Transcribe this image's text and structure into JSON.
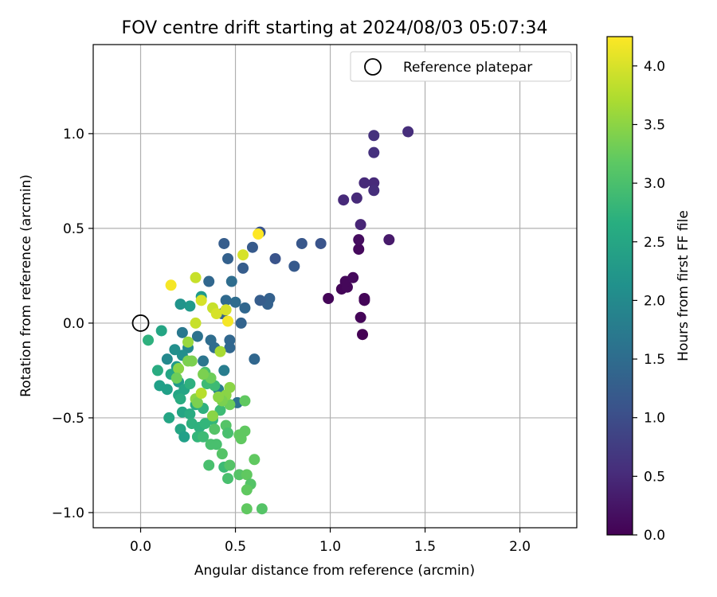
{
  "chart_data": {
    "type": "scatter",
    "title": "FOV centre drift starting at 2024/08/03 05:07:34",
    "xlabel": "Angular distance from reference (arcmin)",
    "ylabel": "Rotation from reference (arcmin)",
    "xlim": [
      -0.25,
      2.3
    ],
    "ylim": [
      -1.08,
      1.47
    ],
    "xticks": [
      "0.0",
      "0.5",
      "1.0",
      "1.5",
      "2.0"
    ],
    "yticks": [
      "−1.0",
      "−0.5",
      "0.0",
      "0.5",
      "1.0"
    ],
    "grid": true,
    "legend": {
      "label": "Reference platepar",
      "placement": "top-right"
    },
    "reference_point": {
      "x": 0.0,
      "y": 0.0
    },
    "colorbar": {
      "label": "Hours from first FF file",
      "range": [
        0,
        4.25
      ],
      "ticks": [
        "0.0",
        "0.5",
        "1.0",
        "1.5",
        "2.0",
        "2.5",
        "3.0",
        "3.5",
        "4.0"
      ],
      "colormap": "viridis"
    },
    "points": [
      {
        "x": 1.17,
        "y": -0.06,
        "c": 0.0
      },
      {
        "x": 1.16,
        "y": 0.03,
        "c": 0.05
      },
      {
        "x": 1.18,
        "y": 0.12,
        "c": 0.05
      },
      {
        "x": 1.18,
        "y": 0.13,
        "c": 0.05
      },
      {
        "x": 1.06,
        "y": 0.18,
        "c": 0.05
      },
      {
        "x": 1.09,
        "y": 0.19,
        "c": 0.08
      },
      {
        "x": 1.08,
        "y": 0.22,
        "c": 0.08
      },
      {
        "x": 1.12,
        "y": 0.24,
        "c": 0.1
      },
      {
        "x": 0.99,
        "y": 0.13,
        "c": 0.05
      },
      {
        "x": 1.15,
        "y": 0.39,
        "c": 0.1
      },
      {
        "x": 1.15,
        "y": 0.44,
        "c": 0.15
      },
      {
        "x": 1.31,
        "y": 0.44,
        "c": 0.3
      },
      {
        "x": 1.16,
        "y": 0.52,
        "c": 0.45
      },
      {
        "x": 1.07,
        "y": 0.65,
        "c": 0.5
      },
      {
        "x": 1.14,
        "y": 0.66,
        "c": 0.5
      },
      {
        "x": 1.18,
        "y": 0.74,
        "c": 0.5
      },
      {
        "x": 1.23,
        "y": 0.74,
        "c": 0.5
      },
      {
        "x": 1.23,
        "y": 0.7,
        "c": 0.55
      },
      {
        "x": 1.23,
        "y": 0.9,
        "c": 0.6
      },
      {
        "x": 1.23,
        "y": 0.99,
        "c": 0.6
      },
      {
        "x": 1.41,
        "y": 1.01,
        "c": 0.55
      },
      {
        "x": 0.95,
        "y": 0.42,
        "c": 1.1
      },
      {
        "x": 0.85,
        "y": 0.42,
        "c": 1.15
      },
      {
        "x": 0.81,
        "y": 0.3,
        "c": 1.2
      },
      {
        "x": 0.71,
        "y": 0.34,
        "c": 1.1
      },
      {
        "x": 0.63,
        "y": 0.48,
        "c": 1.1
      },
      {
        "x": 0.59,
        "y": 0.4,
        "c": 1.2
      },
      {
        "x": 0.54,
        "y": 0.29,
        "c": 1.25
      },
      {
        "x": 0.44,
        "y": 0.42,
        "c": 1.25
      },
      {
        "x": 0.46,
        "y": 0.34,
        "c": 1.3
      },
      {
        "x": 0.68,
        "y": 0.13,
        "c": 1.3
      },
      {
        "x": 0.67,
        "y": 0.1,
        "c": 1.3
      },
      {
        "x": 0.63,
        "y": 0.12,
        "c": 1.25
      },
      {
        "x": 0.55,
        "y": 0.08,
        "c": 1.4
      },
      {
        "x": 0.53,
        "y": 0.0,
        "c": 1.35
      },
      {
        "x": 0.5,
        "y": 0.11,
        "c": 1.5
      },
      {
        "x": 0.48,
        "y": 0.22,
        "c": 1.5
      },
      {
        "x": 0.45,
        "y": 0.12,
        "c": 1.45
      },
      {
        "x": 0.43,
        "y": 0.05,
        "c": 1.3
      },
      {
        "x": 0.36,
        "y": 0.22,
        "c": 1.4
      },
      {
        "x": 0.6,
        "y": -0.19,
        "c": 1.4
      },
      {
        "x": 0.47,
        "y": -0.09,
        "c": 1.4
      },
      {
        "x": 0.47,
        "y": -0.13,
        "c": 1.4
      },
      {
        "x": 0.39,
        "y": -0.13,
        "c": 1.5
      },
      {
        "x": 0.37,
        "y": -0.09,
        "c": 1.5
      },
      {
        "x": 0.3,
        "y": -0.07,
        "c": 1.6
      },
      {
        "x": 0.33,
        "y": -0.2,
        "c": 1.65
      },
      {
        "x": 0.22,
        "y": -0.05,
        "c": 1.7
      },
      {
        "x": 0.51,
        "y": -0.42,
        "c": 1.6
      },
      {
        "x": 0.44,
        "y": -0.25,
        "c": 1.8
      },
      {
        "x": 0.41,
        "y": -0.35,
        "c": 1.8
      },
      {
        "x": 0.32,
        "y": 0.14,
        "c": 2.3
      },
      {
        "x": 0.26,
        "y": 0.09,
        "c": 2.3
      },
      {
        "x": 0.21,
        "y": 0.1,
        "c": 2.2
      },
      {
        "x": 0.25,
        "y": -0.13,
        "c": 2.0
      },
      {
        "x": 0.22,
        "y": -0.17,
        "c": 2.1
      },
      {
        "x": 0.18,
        "y": -0.14,
        "c": 2.1
      },
      {
        "x": 0.14,
        "y": -0.19,
        "c": 2.0
      },
      {
        "x": 0.11,
        "y": -0.04,
        "c": 2.5
      },
      {
        "x": 0.04,
        "y": -0.09,
        "c": 2.7
      },
      {
        "x": 0.09,
        "y": -0.25,
        "c": 2.6
      },
      {
        "x": 0.19,
        "y": -0.23,
        "c": 2.3
      },
      {
        "x": 0.2,
        "y": -0.31,
        "c": 2.3
      },
      {
        "x": 0.16,
        "y": -0.27,
        "c": 2.5
      },
      {
        "x": 0.1,
        "y": -0.33,
        "c": 2.4
      },
      {
        "x": 0.14,
        "y": -0.35,
        "c": 2.4
      },
      {
        "x": 0.2,
        "y": -0.38,
        "c": 2.5
      },
      {
        "x": 0.23,
        "y": -0.35,
        "c": 2.5
      },
      {
        "x": 0.26,
        "y": -0.32,
        "c": 2.7
      },
      {
        "x": 0.21,
        "y": -0.4,
        "c": 2.6
      },
      {
        "x": 0.15,
        "y": -0.5,
        "c": 2.5
      },
      {
        "x": 0.22,
        "y": -0.47,
        "c": 2.5
      },
      {
        "x": 0.26,
        "y": -0.48,
        "c": 2.6
      },
      {
        "x": 0.27,
        "y": -0.53,
        "c": 2.7
      },
      {
        "x": 0.21,
        "y": -0.56,
        "c": 2.5
      },
      {
        "x": 0.23,
        "y": -0.6,
        "c": 2.4
      },
      {
        "x": 0.29,
        "y": -0.43,
        "c": 2.6
      },
      {
        "x": 0.33,
        "y": -0.45,
        "c": 2.7
      },
      {
        "x": 0.31,
        "y": -0.55,
        "c": 2.7
      },
      {
        "x": 0.34,
        "y": -0.53,
        "c": 2.8
      },
      {
        "x": 0.3,
        "y": -0.6,
        "c": 2.8
      },
      {
        "x": 0.33,
        "y": -0.6,
        "c": 2.9
      },
      {
        "x": 0.37,
        "y": -0.64,
        "c": 3.0
      },
      {
        "x": 0.38,
        "y": -0.51,
        "c": 2.8
      },
      {
        "x": 0.42,
        "y": -0.46,
        "c": 2.9
      },
      {
        "x": 0.39,
        "y": -0.33,
        "c": 2.9
      },
      {
        "x": 0.35,
        "y": -0.32,
        "c": 2.9
      },
      {
        "x": 0.34,
        "y": -0.26,
        "c": 3.0
      },
      {
        "x": 0.4,
        "y": -0.64,
        "c": 3.0
      },
      {
        "x": 0.43,
        "y": -0.69,
        "c": 3.1
      },
      {
        "x": 0.36,
        "y": -0.75,
        "c": 3.0
      },
      {
        "x": 0.44,
        "y": -0.76,
        "c": 2.9
      },
      {
        "x": 0.47,
        "y": -0.75,
        "c": 3.1
      },
      {
        "x": 0.46,
        "y": -0.82,
        "c": 3.0
      },
      {
        "x": 0.45,
        "y": -0.54,
        "c": 3.1
      },
      {
        "x": 0.46,
        "y": -0.58,
        "c": 3.0
      },
      {
        "x": 0.39,
        "y": -0.56,
        "c": 3.1
      },
      {
        "x": 0.52,
        "y": -0.59,
        "c": 3.2
      },
      {
        "x": 0.53,
        "y": -0.61,
        "c": 3.2
      },
      {
        "x": 0.55,
        "y": -0.57,
        "c": 3.2
      },
      {
        "x": 0.52,
        "y": -0.8,
        "c": 3.1
      },
      {
        "x": 0.56,
        "y": -0.8,
        "c": 3.2
      },
      {
        "x": 0.58,
        "y": -0.85,
        "c": 3.1
      },
      {
        "x": 0.56,
        "y": -0.88,
        "c": 3.2
      },
      {
        "x": 0.56,
        "y": -0.98,
        "c": 3.2
      },
      {
        "x": 0.64,
        "y": -0.98,
        "c": 3.1
      },
      {
        "x": 0.6,
        "y": -0.72,
        "c": 3.2
      },
      {
        "x": 0.55,
        "y": -0.41,
        "c": 3.2
      },
      {
        "x": 0.47,
        "y": -0.43,
        "c": 3.3
      },
      {
        "x": 0.45,
        "y": -0.38,
        "c": 3.5
      },
      {
        "x": 0.43,
        "y": -0.41,
        "c": 3.4
      },
      {
        "x": 0.41,
        "y": -0.39,
        "c": 3.5
      },
      {
        "x": 0.47,
        "y": -0.34,
        "c": 3.5
      },
      {
        "x": 0.37,
        "y": -0.29,
        "c": 3.3
      },
      {
        "x": 0.33,
        "y": -0.27,
        "c": 3.4
      },
      {
        "x": 0.38,
        "y": -0.49,
        "c": 3.5
      },
      {
        "x": 0.29,
        "y": -0.4,
        "c": 3.5
      },
      {
        "x": 0.3,
        "y": -0.42,
        "c": 3.4
      },
      {
        "x": 0.27,
        "y": -0.2,
        "c": 3.4
      },
      {
        "x": 0.25,
        "y": -0.2,
        "c": 3.4
      },
      {
        "x": 0.2,
        "y": -0.24,
        "c": 3.5
      },
      {
        "x": 0.19,
        "y": -0.29,
        "c": 3.3
      },
      {
        "x": 0.25,
        "y": -0.1,
        "c": 3.6
      },
      {
        "x": 0.42,
        "y": -0.15,
        "c": 3.7
      },
      {
        "x": 0.32,
        "y": -0.37,
        "c": 3.8
      },
      {
        "x": 0.29,
        "y": 0.0,
        "c": 3.9
      },
      {
        "x": 0.45,
        "y": 0.07,
        "c": 4.0
      },
      {
        "x": 0.46,
        "y": 0.01,
        "c": 4.2
      },
      {
        "x": 0.38,
        "y": 0.08,
        "c": 3.9
      },
      {
        "x": 0.4,
        "y": 0.05,
        "c": 4.0
      },
      {
        "x": 0.32,
        "y": 0.12,
        "c": 4.0
      },
      {
        "x": 0.29,
        "y": 0.24,
        "c": 3.9
      },
      {
        "x": 0.16,
        "y": 0.2,
        "c": 4.2
      },
      {
        "x": 0.54,
        "y": 0.36,
        "c": 4.0
      },
      {
        "x": 0.62,
        "y": 0.47,
        "c": 4.25
      }
    ]
  }
}
